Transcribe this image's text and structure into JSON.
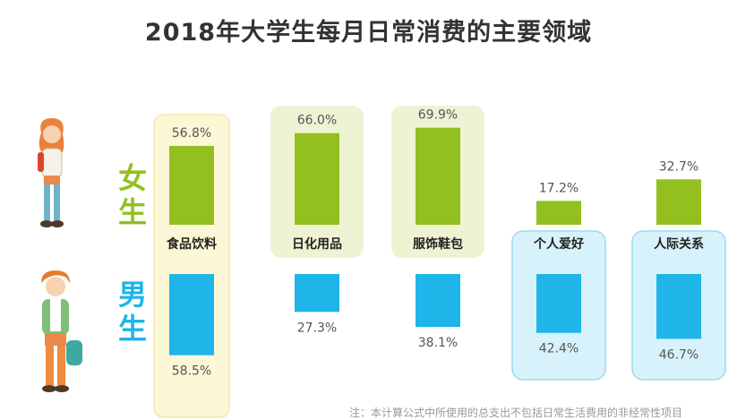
{
  "title": "2018年大学生每月日常消费的主要领域",
  "side_labels": {
    "female": "女\n生",
    "male": "男\n生"
  },
  "footnote": "注：本计算公式中所使用的总支出不包括日常生活费用的非经常性项目",
  "colors": {
    "female_bar": "#93c01f",
    "male_bar": "#1fb5e8",
    "female_highlight_bg": "#eef3d4",
    "male_highlight_bg": "#d8f2fb",
    "first_column_bg": "#fcf7d6",
    "first_column_border": "#f3e9a8"
  },
  "chart_data": {
    "type": "bar",
    "title": "2018年大学生每月日常消费的主要领域",
    "categories": [
      "食品饮料",
      "日化用品",
      "服饰鞋包",
      "个人爱好",
      "人际关系"
    ],
    "series": [
      {
        "name": "女生",
        "values": [
          56.8,
          66.0,
          69.9,
          17.2,
          32.7
        ],
        "labels": [
          "56.8%",
          "66.0%",
          "69.9%",
          "17.2%",
          "32.7%"
        ]
      },
      {
        "name": "男生",
        "values": [
          58.5,
          27.3,
          38.1,
          42.4,
          46.7
        ],
        "labels": [
          "58.5%",
          "27.3%",
          "38.1%",
          "42.4%",
          "46.7%"
        ]
      }
    ],
    "unit": "%",
    "female_highlighted": [
      "食品饮料",
      "日化用品",
      "服饰鞋包"
    ],
    "male_highlighted": [
      "食品饮料",
      "个人爱好",
      "人际关系"
    ]
  }
}
